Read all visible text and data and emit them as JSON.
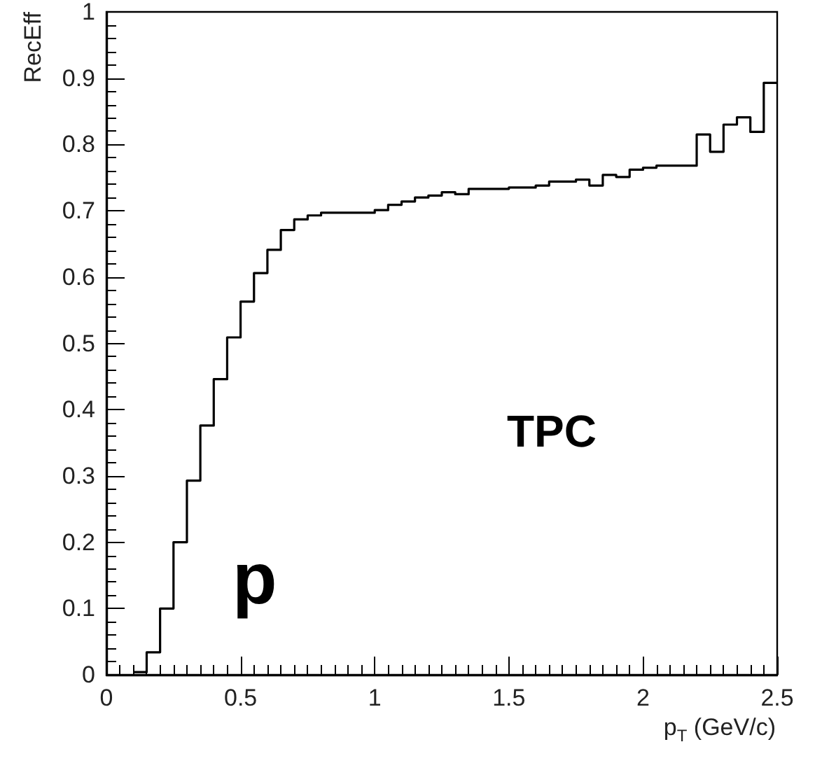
{
  "chart_data": {
    "type": "histogram",
    "xlabel": "p$_{T}$ (GeV/c)",
    "ylabel": "RecEff",
    "annotations": [
      "TPC",
      "p"
    ],
    "bins": [
      0.1,
      0.15,
      0.2,
      0.25,
      0.3,
      0.35,
      0.4,
      0.45,
      0.5,
      0.55,
      0.6,
      0.65,
      0.7,
      0.75,
      0.8,
      0.85,
      0.9,
      0.95,
      1.0,
      1.05,
      1.1,
      1.15,
      1.2,
      1.25,
      1.3,
      1.35,
      1.4,
      1.45,
      1.5,
      1.55,
      1.6,
      1.65,
      1.7,
      1.75,
      1.8,
      1.85,
      1.9,
      1.95,
      2.0,
      2.05,
      2.1,
      2.15,
      2.2,
      2.25,
      2.3,
      2.35,
      2.4,
      2.45,
      2.5
    ],
    "values": [
      0.004,
      0.034,
      0.1,
      0.2,
      0.293,
      0.376,
      0.446,
      0.509,
      0.563,
      0.606,
      0.641,
      0.671,
      0.687,
      0.693,
      0.697,
      0.697,
      0.697,
      0.697,
      0.701,
      0.709,
      0.714,
      0.72,
      0.723,
      0.728,
      0.725,
      0.733,
      0.733,
      0.733,
      0.735,
      0.735,
      0.738,
      0.744,
      0.744,
      0.747,
      0.738,
      0.754,
      0.751,
      0.762,
      0.765,
      0.768,
      0.768,
      0.768,
      0.815,
      0.789,
      0.83,
      0.841,
      0.819,
      0.893
    ],
    "color": "#000000",
    "xlim": [
      0,
      2.5
    ],
    "xticks": [
      0,
      0.5,
      1,
      1.5,
      2,
      2.5
    ],
    "ylim": [
      0,
      1
    ],
    "yticks": [
      0,
      0.1,
      0.2,
      0.3,
      0.4,
      0.5,
      0.6,
      0.7,
      0.8,
      0.9,
      1
    ]
  }
}
